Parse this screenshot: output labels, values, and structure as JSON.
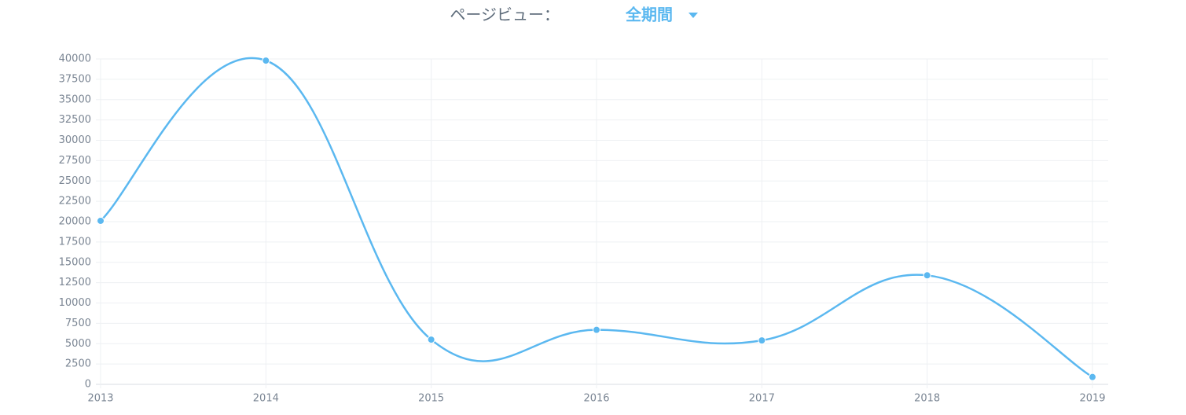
{
  "chart_data": {
    "type": "line",
    "title": "ページビュー：",
    "period": "全期間",
    "x": [
      "2013",
      "2014",
      "2015",
      "2016",
      "2017",
      "2018",
      "2019"
    ],
    "series": [
      {
        "name": "ページビュー",
        "color": "#5bb8f0",
        "values": [
          20100,
          39800,
          5500,
          6700,
          5400,
          13400,
          900
        ]
      }
    ],
    "ylim": [
      0,
      40000
    ],
    "yticks": [
      0,
      2500,
      5000,
      7500,
      10000,
      12500,
      15000,
      17500,
      20000,
      22500,
      25000,
      27500,
      30000,
      32500,
      35000,
      37500,
      40000
    ],
    "grid": true
  }
}
